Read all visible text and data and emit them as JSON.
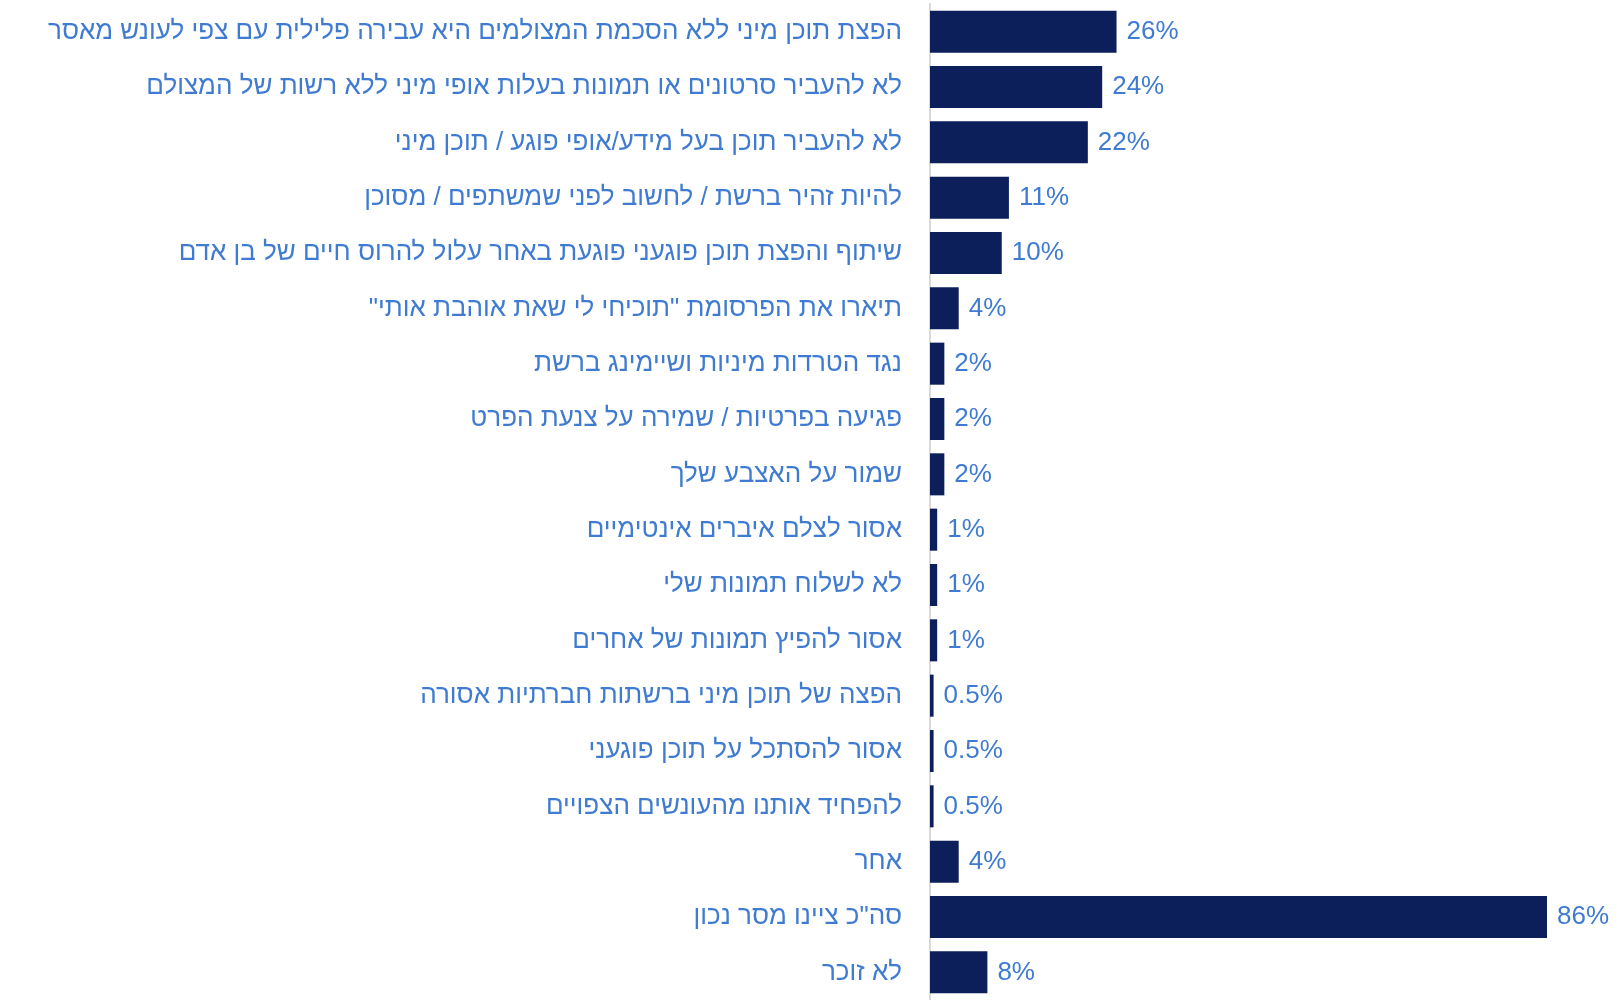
{
  "chart_data": {
    "type": "bar",
    "orientation": "horizontal",
    "categories": [
      "הפצת תוכן מיני ללא הסכמת המצולמים היא עבירה פלילית עם צפי לעונש מאסר",
      "לא להעביר סרטונים או תמונות בעלות אופי מיני ללא רשות של המצולם",
      "לא להעביר תוכן בעל מידע/אופי פוגע / תוכן מיני",
      "להיות זהיר ברשת / לחשוב לפני שמשתפים / מסוכן",
      "שיתוף והפצת תוכן פוגעני פוגעת באחר עלול להרוס חיים של בן אדם",
      "תיארו את הפרסומת \"תוכיחי לי שאת אוהבת אותי\"",
      "נגד הטרדות מיניות ושיימינג ברשת",
      "פגיעה בפרטיות / שמירה על צנעת הפרט",
      "שמור על האצבע שלך",
      "אסור לצלם איברים אינטימיים",
      "לא לשלוח תמונות שלי",
      "אסור להפיץ תמונות של אחרים",
      "הפצה של תוכן מיני ברשתות חברתיות אסורה",
      "אסור להסתכל על תוכן פוגעני",
      "להפחיד אותנו מהעונשים הצפויים",
      "אחר",
      "סה\"כ ציינו מסר נכון",
      "לא זוכר"
    ],
    "values": [
      26,
      24,
      22,
      11,
      10,
      4,
      2,
      2,
      2,
      1,
      1,
      1,
      0.5,
      0.5,
      0.5,
      4,
      86,
      8
    ],
    "value_labels": [
      "26%",
      "24%",
      "22%",
      "11%",
      "10%",
      "4%",
      "2%",
      "2%",
      "2%",
      "1%",
      "1%",
      "1%",
      "0.5%",
      "0.5%",
      "0.5%",
      "4%",
      "86%",
      "8%"
    ],
    "color": "#0c1f5a",
    "grid": false,
    "legend": false,
    "tick_labels": "y"
  }
}
